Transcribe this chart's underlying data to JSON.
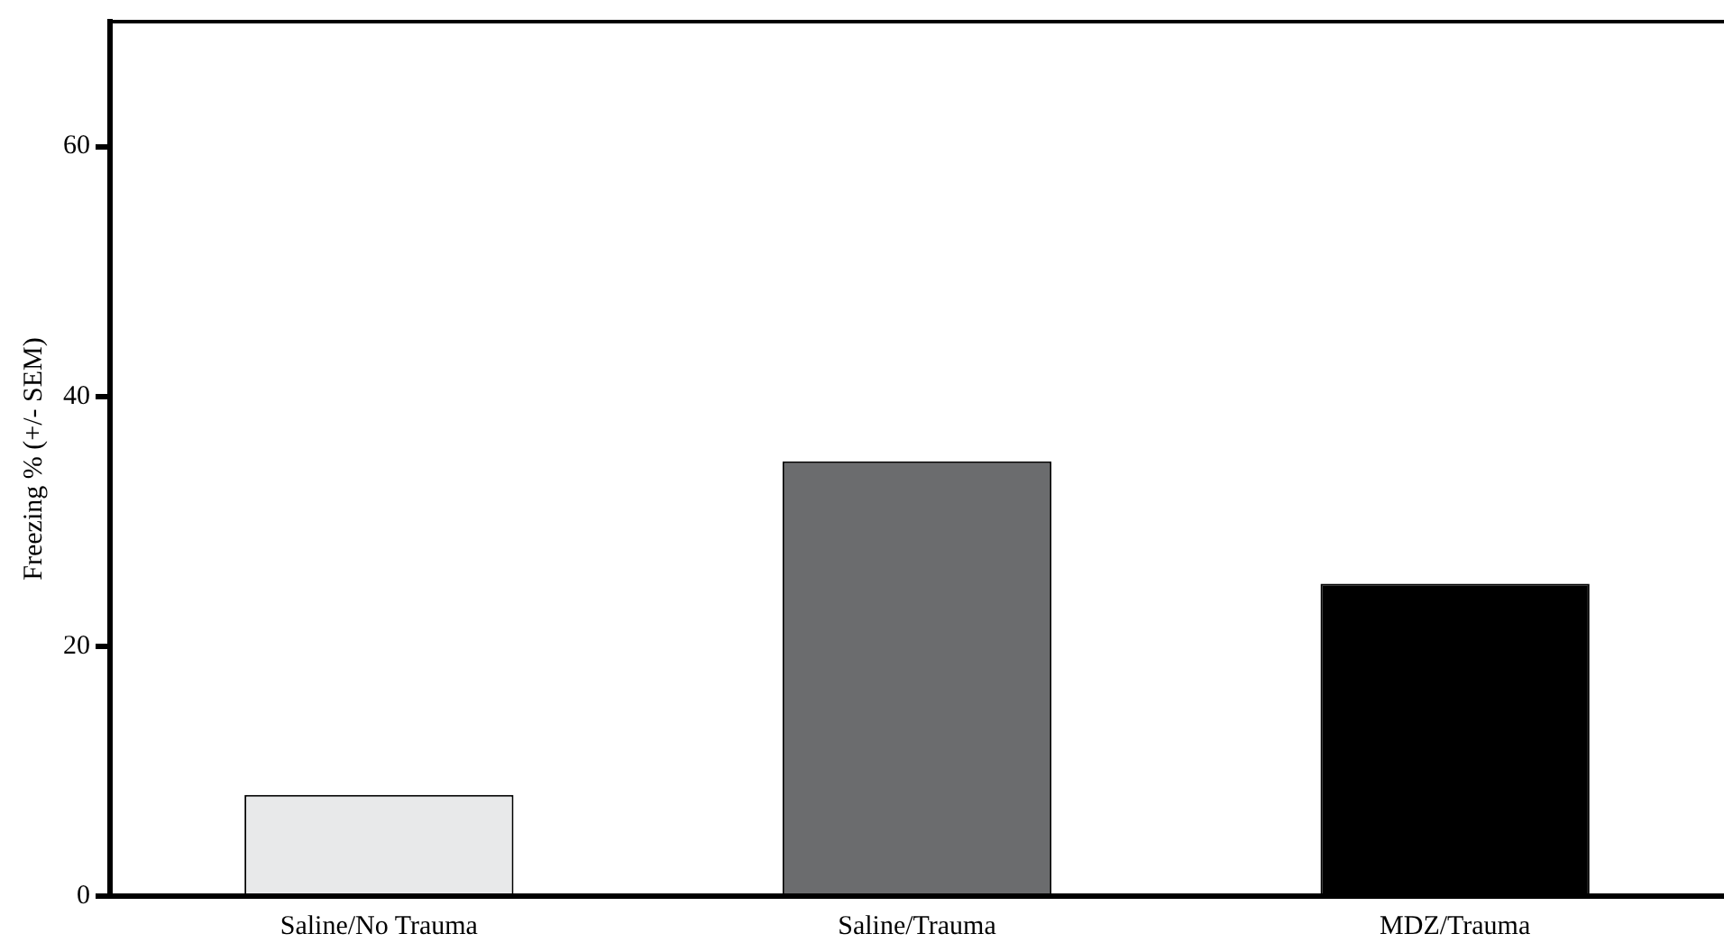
{
  "chart_data": {
    "type": "bar",
    "ylabel": "Freezing % (+/- SEM)",
    "categories": [
      "Saline/No Trauma",
      "Saline/Trauma",
      "MDZ/Trauma"
    ],
    "values": [
      8.1,
      34.8,
      25.0
    ],
    "colors": [
      "#e8e9ea",
      "#6b6c6e",
      "#000000"
    ],
    "ylim": [
      0,
      70
    ],
    "yticks": [
      0,
      20,
      40,
      60
    ],
    "grid": false,
    "legend": false
  }
}
